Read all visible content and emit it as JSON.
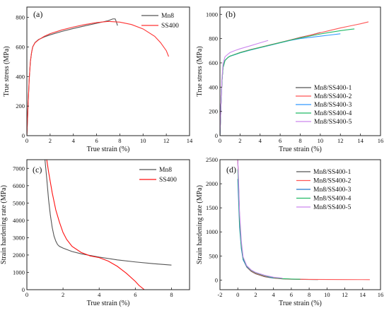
{
  "chart_data": [
    {
      "type": "line",
      "panel_label": "(a)",
      "xlabel": "True strain (%)",
      "ylabel": "True stress (MPa)",
      "xlim": [
        0,
        14
      ],
      "ylim": [
        0,
        870
      ],
      "xticks": [
        "0",
        "2",
        "4",
        "6",
        "8",
        "10",
        "12",
        "14"
      ],
      "yticks": [
        "0",
        "200",
        "400",
        "600",
        "800"
      ],
      "legend": "top-right",
      "series": [
        {
          "name": "Mn8",
          "color": "#555555",
          "x": [
            0,
            0.1,
            0.2,
            0.3,
            0.4,
            0.5,
            0.7,
            1,
            1.5,
            2,
            3,
            4,
            5,
            6,
            7,
            7.4,
            7.6,
            7.7,
            7.8
          ],
          "y": [
            0,
            200,
            380,
            500,
            560,
            600,
            630,
            650,
            668,
            682,
            705,
            725,
            743,
            760,
            778,
            790,
            790,
            770,
            745
          ]
        },
        {
          "name": "SS400",
          "color": "#ff3333",
          "x": [
            0,
            0.1,
            0.2,
            0.3,
            0.4,
            0.5,
            0.7,
            1,
            1.5,
            2,
            3,
            4,
            5,
            6,
            7,
            8,
            9,
            10,
            11,
            11.5,
            12,
            12.2
          ],
          "y": [
            0,
            200,
            380,
            500,
            560,
            600,
            628,
            648,
            672,
            690,
            715,
            735,
            752,
            765,
            773,
            768,
            752,
            722,
            672,
            630,
            575,
            535
          ]
        }
      ]
    },
    {
      "type": "line",
      "panel_label": "(b)",
      "xlabel": "True strain (%)",
      "ylabel": "True stress (MPa)",
      "xlim": [
        0,
        16
      ],
      "ylim": [
        0,
        1060
      ],
      "xticks": [
        "0",
        "2",
        "4",
        "6",
        "8",
        "10",
        "12",
        "14",
        "16"
      ],
      "yticks": [
        "0",
        "200",
        "400",
        "600",
        "800",
        "1000"
      ],
      "legend": "bottom-right",
      "series": [
        {
          "name": "Mn8/SS400-1",
          "color": "#555555",
          "x": [
            0,
            0.1,
            0.2,
            0.3,
            0.5,
            0.8,
            1,
            1.5,
            2,
            3,
            4,
            5,
            6,
            7,
            8,
            9,
            10
          ],
          "y": [
            0,
            250,
            450,
            560,
            620,
            645,
            655,
            670,
            685,
            708,
            728,
            748,
            768,
            788,
            810,
            828,
            850
          ]
        },
        {
          "name": "Mn8/SS400-2",
          "color": "#ff5555",
          "x": [
            0,
            0.1,
            0.2,
            0.3,
            0.5,
            0.8,
            1,
            1.5,
            2,
            3,
            4,
            5,
            6,
            7,
            8,
            9,
            10,
            11,
            12,
            13,
            14,
            14.8
          ],
          "y": [
            0,
            250,
            450,
            560,
            620,
            645,
            655,
            670,
            685,
            708,
            728,
            748,
            768,
            788,
            808,
            828,
            848,
            868,
            888,
            905,
            922,
            938
          ]
        },
        {
          "name": "Mn8/SS400-3",
          "color": "#3399ff",
          "x": [
            0,
            0.1,
            0.2,
            0.3,
            0.5,
            0.8,
            1,
            1.5,
            2,
            3,
            4,
            5,
            6,
            7,
            8,
            9,
            10,
            11,
            12
          ],
          "y": [
            0,
            250,
            450,
            560,
            620,
            645,
            655,
            668,
            682,
            705,
            725,
            745,
            765,
            785,
            800,
            810,
            820,
            830,
            840
          ]
        },
        {
          "name": "Mn8/SS400-4",
          "color": "#22bb66",
          "x": [
            0,
            0.1,
            0.2,
            0.3,
            0.5,
            0.8,
            1,
            1.5,
            2,
            3,
            4,
            5,
            6,
            7,
            8,
            9,
            10,
            11,
            12,
            13,
            13.4
          ],
          "y": [
            0,
            250,
            450,
            560,
            620,
            645,
            655,
            670,
            684,
            707,
            727,
            747,
            767,
            787,
            805,
            822,
            838,
            852,
            865,
            876,
            880
          ]
        },
        {
          "name": "Mn8/SS400-5",
          "color": "#cc88ee",
          "x": [
            0,
            0.1,
            0.2,
            0.3,
            0.5,
            0.8,
            1,
            1.5,
            2,
            3,
            4,
            4.8
          ],
          "y": [
            0,
            260,
            470,
            590,
            650,
            672,
            685,
            702,
            716,
            740,
            765,
            785
          ]
        }
      ]
    },
    {
      "type": "line",
      "panel_label": "(c)",
      "xlabel": "True strain (%)",
      "ylabel": "Strain hardening rate (MPa)",
      "xlim": [
        0,
        9
      ],
      "ylim": [
        0,
        7500
      ],
      "xticks": [
        "0",
        "2",
        "4",
        "6",
        "8"
      ],
      "yticks": [
        "0",
        "1000",
        "2000",
        "3000",
        "4000",
        "5000",
        "6000",
        "7000"
      ],
      "legend": "top-right",
      "series": [
        {
          "name": "Mn8",
          "color": "#555555",
          "x": [
            1.0,
            1.1,
            1.2,
            1.3,
            1.4,
            1.5,
            1.6,
            1.7,
            1.8,
            2,
            2.5,
            3,
            4,
            5,
            6,
            7,
            8
          ],
          "y": [
            7500,
            6400,
            5200,
            4300,
            3600,
            3100,
            2800,
            2600,
            2500,
            2400,
            2200,
            2070,
            1880,
            1720,
            1600,
            1500,
            1420
          ]
        },
        {
          "name": "SS400",
          "color": "#ff1111",
          "x": [
            1.1,
            1.2,
            1.4,
            1.6,
            1.8,
            2,
            2.2,
            2.5,
            3,
            3.5,
            4,
            4.5,
            5,
            5.5,
            6,
            6.2,
            6.5
          ],
          "y": [
            7500,
            6800,
            5600,
            4600,
            3900,
            3300,
            2900,
            2500,
            2150,
            1950,
            1850,
            1650,
            1350,
            950,
            480,
            250,
            0
          ]
        }
      ]
    },
    {
      "type": "line",
      "panel_label": "(d)",
      "xlabel": "True strain (%)",
      "ylabel": "Strain hardening rate (MPa)",
      "xlim": [
        -2,
        16
      ],
      "ylim": [
        -200,
        2500
      ],
      "xticks": [
        "-2",
        "0",
        "2",
        "4",
        "6",
        "8",
        "10",
        "12",
        "14",
        "16"
      ],
      "yticks": [
        "0",
        "500",
        "1000",
        "1500",
        "2000",
        "2500"
      ],
      "legend": "top-right",
      "series": [
        {
          "name": "Mn8/SS400-1",
          "color": "#555555",
          "x": [
            0,
            0.1,
            0.2,
            0.4,
            0.6,
            1,
            1.5,
            2,
            3,
            4,
            5,
            6,
            8,
            9
          ],
          "y": [
            2500,
            1900,
            1300,
            700,
            430,
            270,
            180,
            130,
            70,
            40,
            25,
            18,
            12,
            10
          ]
        },
        {
          "name": "Mn8/SS400-2",
          "color": "#ff5555",
          "x": [
            0,
            0.1,
            0.2,
            0.4,
            0.6,
            1,
            1.5,
            2,
            3,
            4,
            5,
            6,
            8,
            10,
            12,
            14,
            14.8
          ],
          "y": [
            2500,
            1900,
            1300,
            700,
            430,
            280,
            190,
            140,
            80,
            45,
            28,
            20,
            14,
            12,
            10,
            9,
            8
          ]
        },
        {
          "name": "Mn8/SS400-3",
          "color": "#2277cc",
          "x": [
            0,
            0.1,
            0.2,
            0.4,
            0.6,
            1,
            1.5,
            2,
            3,
            4
          ],
          "y": [
            2100,
            1600,
            1100,
            650,
            420,
            280,
            200,
            150,
            90,
            40
          ]
        },
        {
          "name": "Mn8/SS400-4",
          "color": "#22bb66",
          "x": [
            0,
            0.1,
            0.2,
            0.4,
            0.6,
            1,
            1.5,
            2,
            3,
            4,
            5,
            6,
            7
          ],
          "y": [
            2300,
            1800,
            1200,
            700,
            450,
            290,
            200,
            150,
            90,
            50,
            30,
            22,
            18
          ]
        },
        {
          "name": "Mn8/SS400-5",
          "color": "#cc88ee",
          "x": [
            0,
            0.1,
            0.2,
            0.4,
            0.6,
            1,
            1.5,
            2,
            3,
            4,
            5
          ],
          "y": [
            2500,
            2000,
            1400,
            800,
            480,
            300,
            210,
            160,
            100,
            60,
            40
          ]
        }
      ]
    }
  ]
}
